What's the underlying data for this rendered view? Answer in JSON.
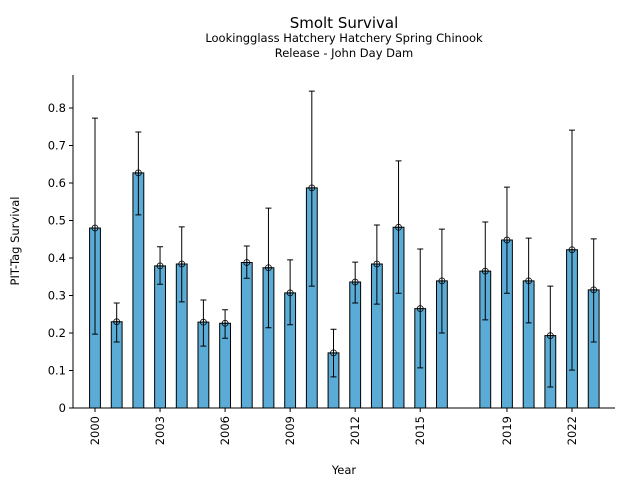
{
  "chart_data": {
    "type": "bar",
    "title": "Smolt Survival",
    "subtitle_lines": [
      "Lookingglass Hatchery Hatchery Spring Chinook",
      "Release - John Day Dam"
    ],
    "xlabel": "Year",
    "ylabel": "PIT-Tag Survival",
    "xlim": [
      1999.4,
      2024.0
    ],
    "ylim": [
      0,
      0.89
    ],
    "yticks": [
      0,
      0.1,
      0.2,
      0.3,
      0.4,
      0.5,
      0.6,
      0.7,
      0.8
    ],
    "ytick_labels": [
      "0",
      "0.1",
      "0.2",
      "0.3",
      "0.4",
      "0.5",
      "0.6",
      "0.7",
      "0.8"
    ],
    "xticks": [
      2000,
      2003,
      2006,
      2009,
      2012,
      2015,
      2019,
      2022
    ],
    "xtick_labels": [
      "2000",
      "2003",
      "2006",
      "2009",
      "2012",
      "2015",
      "2019",
      "2022"
    ],
    "grid": false,
    "bar_color": "#5aabd6",
    "edge_color": "#000000",
    "x": [
      2000,
      2001,
      2002,
      2003,
      2004,
      2005,
      2006,
      2007,
      2008,
      2009,
      2010,
      2011,
      2012,
      2013,
      2014,
      2015,
      2016,
      2018,
      2019,
      2020,
      2021,
      2022,
      2023
    ],
    "values": [
      0.48,
      0.23,
      0.627,
      0.379,
      0.384,
      0.229,
      0.226,
      0.388,
      0.374,
      0.307,
      0.587,
      0.147,
      0.336,
      0.384,
      0.482,
      0.265,
      0.339,
      0.365,
      0.448,
      0.339,
      0.193,
      0.422,
      0.315
    ],
    "error_upper": [
      0.773,
      0.28,
      0.736,
      0.43,
      0.483,
      0.288,
      0.262,
      0.432,
      0.533,
      0.395,
      0.845,
      0.21,
      0.389,
      0.488,
      0.659,
      0.424,
      0.477,
      0.496,
      0.589,
      0.453,
      0.325,
      0.741,
      0.451
    ],
    "error_lower": [
      0.197,
      0.176,
      0.515,
      0.33,
      0.283,
      0.165,
      0.186,
      0.346,
      0.214,
      0.222,
      0.325,
      0.083,
      0.28,
      0.277,
      0.306,
      0.107,
      0.2,
      0.235,
      0.306,
      0.227,
      0.056,
      0.101,
      0.176
    ]
  }
}
